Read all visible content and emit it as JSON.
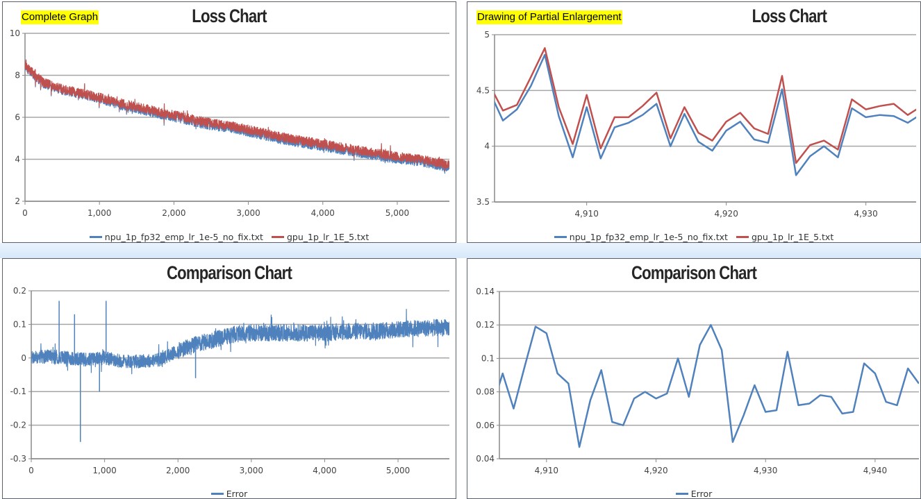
{
  "panels": {
    "top_left": {
      "tag": "Complete Graph",
      "title": "Loss Chart"
    },
    "top_right": {
      "tag": "Drawing of Partial Enlargement",
      "title": "Loss Chart"
    },
    "bottom_left": {
      "title": "Comparison Chart"
    },
    "bottom_right": {
      "title": "Comparison Chart"
    }
  },
  "colors": {
    "npu": "#4f81bd",
    "gpu": "#c0504d",
    "error": "#4f81bd",
    "grid": "#a6a6a6"
  },
  "chart_data": [
    {
      "id": "loss_full",
      "type": "line",
      "title": "Loss Chart",
      "xlim": [
        0,
        5700
      ],
      "ylim": [
        2,
        10
      ],
      "xticks": [
        "0",
        "1,000",
        "2,000",
        "3,000",
        "4,000",
        "5,000"
      ],
      "xtick_values": [
        0,
        1000,
        2000,
        3000,
        4000,
        5000
      ],
      "yticks": [
        "2",
        "4",
        "6",
        "8",
        "10"
      ],
      "ytick_values": [
        2,
        4,
        6,
        8,
        10
      ],
      "grid": true,
      "legend": "bottom",
      "x": [
        0,
        250,
        500,
        750,
        1000,
        1250,
        1500,
        1750,
        2000,
        2250,
        2500,
        2750,
        3000,
        3250,
        3500,
        3750,
        4000,
        4250,
        4500,
        4750,
        5000,
        5250,
        5500,
        5700
      ],
      "series": [
        {
          "name": "npu_1p_fp32_emp_lr_1e-5_no_fix.txt",
          "values": [
            8.4,
            7.6,
            7.3,
            7.1,
            6.9,
            6.6,
            6.4,
            6.2,
            6.0,
            5.8,
            5.6,
            5.5,
            5.3,
            5.1,
            4.9,
            4.75,
            4.6,
            4.45,
            4.3,
            4.15,
            4.0,
            3.9,
            3.75,
            3.6
          ]
        },
        {
          "name": "gpu_1p_lr_1E_5.txt",
          "values": [
            8.45,
            7.65,
            7.35,
            7.15,
            6.95,
            6.7,
            6.5,
            6.3,
            6.1,
            5.9,
            5.72,
            5.6,
            5.42,
            5.22,
            5.02,
            4.87,
            4.72,
            4.58,
            4.42,
            4.28,
            4.12,
            4.02,
            3.88,
            3.72
          ]
        }
      ]
    },
    {
      "id": "loss_zoom",
      "type": "line",
      "title": "Loss Chart",
      "xlim": [
        4903.4,
        4933.6
      ],
      "ylim": [
        3.5,
        5
      ],
      "xticks": [
        "4,910",
        "4,920",
        "4,930"
      ],
      "xtick_values": [
        4910,
        4920,
        4930
      ],
      "yticks": [
        "3.5",
        "4",
        "4.5",
        "5"
      ],
      "ytick_values": [
        3.5,
        4,
        4.5,
        5
      ],
      "grid": true,
      "legend": "bottom",
      "x": [
        4903,
        4904,
        4905,
        4906,
        4907,
        4908,
        4909,
        4910,
        4911,
        4912,
        4913,
        4914,
        4915,
        4916,
        4917,
        4918,
        4919,
        4920,
        4921,
        4922,
        4923,
        4924,
        4925,
        4926,
        4927,
        4928,
        4929,
        4930,
        4931,
        4932,
        4933,
        4934
      ],
      "series": [
        {
          "name": "npu_1p_fp32_emp_lr_1e-5_no_fix.txt",
          "values": [
            4.5,
            4.23,
            4.33,
            4.54,
            4.82,
            4.27,
            3.9,
            4.35,
            3.89,
            4.17,
            4.21,
            4.28,
            4.38,
            4.0,
            4.29,
            4.04,
            3.96,
            4.14,
            4.22,
            4.06,
            4.03,
            4.51,
            3.74,
            3.91,
            4.0,
            3.9,
            4.34,
            4.26,
            4.28,
            4.27,
            4.21,
            4.29
          ]
        },
        {
          "name": "gpu_1p_lr_1E_5.txt",
          "values": [
            4.56,
            4.32,
            4.37,
            4.62,
            4.88,
            4.35,
            4.02,
            4.46,
            3.98,
            4.26,
            4.26,
            4.36,
            4.48,
            4.07,
            4.35,
            4.12,
            4.05,
            4.22,
            4.3,
            4.16,
            4.11,
            4.63,
            3.85,
            4.01,
            4.05,
            3.97,
            4.42,
            4.33,
            4.36,
            4.38,
            4.28,
            4.36
          ]
        }
      ]
    },
    {
      "id": "error_full",
      "type": "line",
      "title": "Comparison Chart",
      "xlim": [
        0,
        5700
      ],
      "ylim": [
        -0.3,
        0.2
      ],
      "xticks": [
        "0",
        "1,000",
        "2,000",
        "3,000",
        "4,000",
        "5,000"
      ],
      "xtick_values": [
        0,
        1000,
        2000,
        3000,
        4000,
        5000
      ],
      "yticks": [
        "-0.3",
        "-0.2",
        "-0.1",
        "0",
        "0.1",
        "0.2"
      ],
      "ytick_values": [
        -0.3,
        -0.2,
        -0.1,
        0,
        0.1,
        0.2
      ],
      "grid": true,
      "legend": "bottom",
      "x": [
        0,
        250,
        500,
        750,
        1000,
        1250,
        1500,
        1750,
        2000,
        2250,
        2500,
        2750,
        3000,
        3250,
        3500,
        3750,
        4000,
        4250,
        4500,
        4750,
        5000,
        5250,
        5500,
        5700
      ],
      "series": [
        {
          "name": "Error",
          "values": [
            0.0,
            0.005,
            0.0,
            -0.005,
            0.0,
            -0.01,
            -0.01,
            -0.005,
            0.02,
            0.04,
            0.055,
            0.07,
            0.075,
            0.075,
            0.075,
            0.075,
            0.075,
            0.078,
            0.08,
            0.08,
            0.085,
            0.088,
            0.09,
            0.09
          ]
        }
      ],
      "spikes": [
        [
          380,
          0.17
        ],
        [
          1020,
          0.17
        ],
        [
          590,
          0.13
        ],
        [
          670,
          -0.25
        ],
        [
          930,
          -0.1
        ],
        [
          2240,
          -0.06
        ]
      ]
    },
    {
      "id": "error_zoom",
      "type": "line",
      "title": "Comparison Chart",
      "xlim": [
        4905.7,
        4944
      ],
      "ylim": [
        0.04,
        0.14
      ],
      "xticks": [
        "4,910",
        "4,920",
        "4,930",
        "4,940"
      ],
      "xtick_values": [
        4910,
        4920,
        4930,
        4940
      ],
      "yticks": [
        "0.04",
        "0.06",
        "0.08",
        "0.1",
        "0.12",
        "0.14"
      ],
      "ytick_values": [
        0.04,
        0.06,
        0.08,
        0.1,
        0.12,
        0.14
      ],
      "grid": true,
      "legend": "bottom",
      "x": [
        4905,
        4906,
        4907,
        4908,
        4909,
        4910,
        4911,
        4912,
        4913,
        4914,
        4915,
        4916,
        4917,
        4918,
        4919,
        4920,
        4921,
        4922,
        4923,
        4924,
        4925,
        4926,
        4927,
        4928,
        4929,
        4930,
        4931,
        4932,
        4933,
        4934,
        4935,
        4936,
        4937,
        4938,
        4939,
        4940,
        4941,
        4942,
        4943,
        4944
      ],
      "series": [
        {
          "name": "Error",
          "values": [
            0.07,
            0.091,
            0.07,
            0.095,
            0.119,
            0.115,
            0.091,
            0.085,
            0.047,
            0.075,
            0.093,
            0.062,
            0.06,
            0.076,
            0.08,
            0.076,
            0.079,
            0.1,
            0.077,
            0.108,
            0.12,
            0.105,
            0.05,
            0.066,
            0.084,
            0.068,
            0.069,
            0.104,
            0.072,
            0.073,
            0.078,
            0.077,
            0.067,
            0.068,
            0.097,
            0.091,
            0.074,
            0.072,
            0.094,
            0.085
          ]
        }
      ]
    }
  ]
}
